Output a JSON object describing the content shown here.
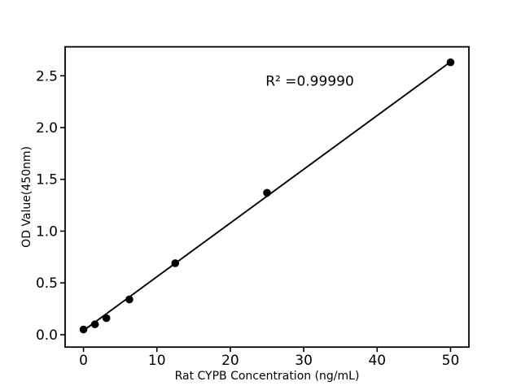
{
  "figure": {
    "background": "#ffffff",
    "foreground": "#000000"
  },
  "chart_data": {
    "type": "scatter",
    "title": "",
    "xlabel": "Rat CYPB Concentration (ng/mL)",
    "ylabel": "OD Value(450nm)",
    "series": [
      {
        "name": "standard-points",
        "x": [
          0,
          1.56,
          3.12,
          6.25,
          12.5,
          25,
          50
        ],
        "y": [
          0.05,
          0.1,
          0.16,
          0.34,
          0.69,
          1.37,
          2.63
        ]
      }
    ],
    "fit_line": {
      "x": [
        0,
        50
      ],
      "y": [
        0.04,
        2.635
      ]
    },
    "annotation": {
      "text": "R² =0.99990",
      "x": 24.8,
      "y": 2.45
    },
    "xlim": [
      -2.5,
      52.5
    ],
    "ylim": [
      -0.12,
      2.78
    ],
    "x_tick_values": [
      0,
      10,
      20,
      30,
      40,
      50
    ],
    "x_tick_labels": [
      "0",
      "10",
      "20",
      "30",
      "40",
      "50"
    ],
    "y_tick_values": [
      0.0,
      0.5,
      1.0,
      1.5,
      2.0,
      2.5
    ],
    "y_tick_labels": [
      "0.0",
      "0.5",
      "1.0",
      "1.5",
      "2.0",
      "2.5"
    ],
    "grid": false,
    "legend": false,
    "marker_color": "#000000",
    "line_color": "#000000",
    "spine_color": "#000000"
  }
}
